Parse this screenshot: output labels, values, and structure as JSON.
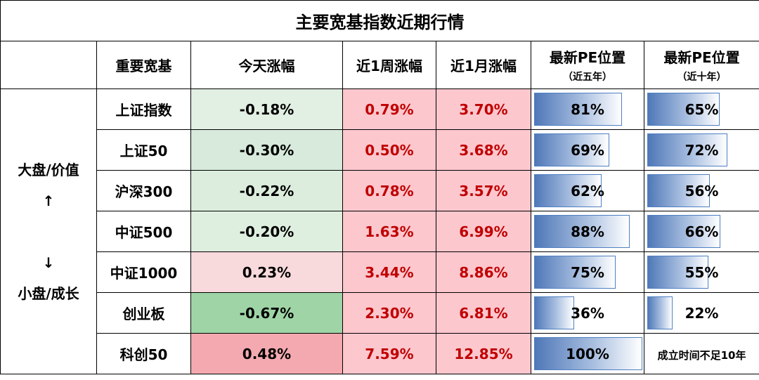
{
  "title": "主要宽基指数近期行情",
  "headers": {
    "name": "重要宽基",
    "today": "今天涨幅",
    "week": "近1周涨幅",
    "month": "近1月涨幅",
    "pe5_line1": "最新PE位置",
    "pe5_line2": "（近五年）",
    "pe10_line1": "最新PE位置",
    "pe10_line2": "（近十年）"
  },
  "side_label": {
    "top": "大盘/价值",
    "up_arrow": "↑",
    "down_arrow": "↓",
    "bottom": "小盘/成长"
  },
  "rows": [
    {
      "name": "上证指数",
      "today": "-0.18%",
      "week": "0.79%",
      "month": "3.70%",
      "pe5": "81%",
      "pe5_value": 0.81,
      "pe10": "65%",
      "pe10_value": 0.65
    },
    {
      "name": "上证50",
      "today": "-0.30%",
      "week": "0.50%",
      "month": "3.68%",
      "pe5": "69%",
      "pe5_value": 0.69,
      "pe10": "72%",
      "pe10_value": 0.72
    },
    {
      "name": "沪深300",
      "today": "-0.22%",
      "week": "0.78%",
      "month": "3.57%",
      "pe5": "62%",
      "pe5_value": 0.62,
      "pe10": "56%",
      "pe10_value": 0.56
    },
    {
      "name": "中证500",
      "today": "-0.20%",
      "week": "1.63%",
      "month": "6.99%",
      "pe5": "88%",
      "pe5_value": 0.88,
      "pe10": "66%",
      "pe10_value": 0.66
    },
    {
      "name": "中证1000",
      "today": "0.23%",
      "week": "3.44%",
      "month": "8.86%",
      "pe5": "75%",
      "pe5_value": 0.75,
      "pe10": "55%",
      "pe10_value": 0.55
    },
    {
      "name": "创业板",
      "today": "-0.67%",
      "week": "2.30%",
      "month": "6.81%",
      "pe5": "36%",
      "pe5_value": 0.36,
      "pe10": "22%",
      "pe10_value": 0.22
    },
    {
      "name": "科创50",
      "today": "0.48%",
      "week": "7.59%",
      "month": "12.85%",
      "pe5": "100%",
      "pe5_value": 1.0,
      "pe10": "成立时间不足10年",
      "pe10_value": null
    }
  ],
  "colors": {
    "today_bg": [
      "#e2efe3",
      "#d7eadb",
      "#dcedde",
      "#deeedf",
      "#f8d9dc",
      "#9fd5a6",
      "#f4a9b0"
    ],
    "week_bg": "#fdc7ce",
    "month_bg": "#fdc7ce",
    "red_text": "#c00000"
  }
}
